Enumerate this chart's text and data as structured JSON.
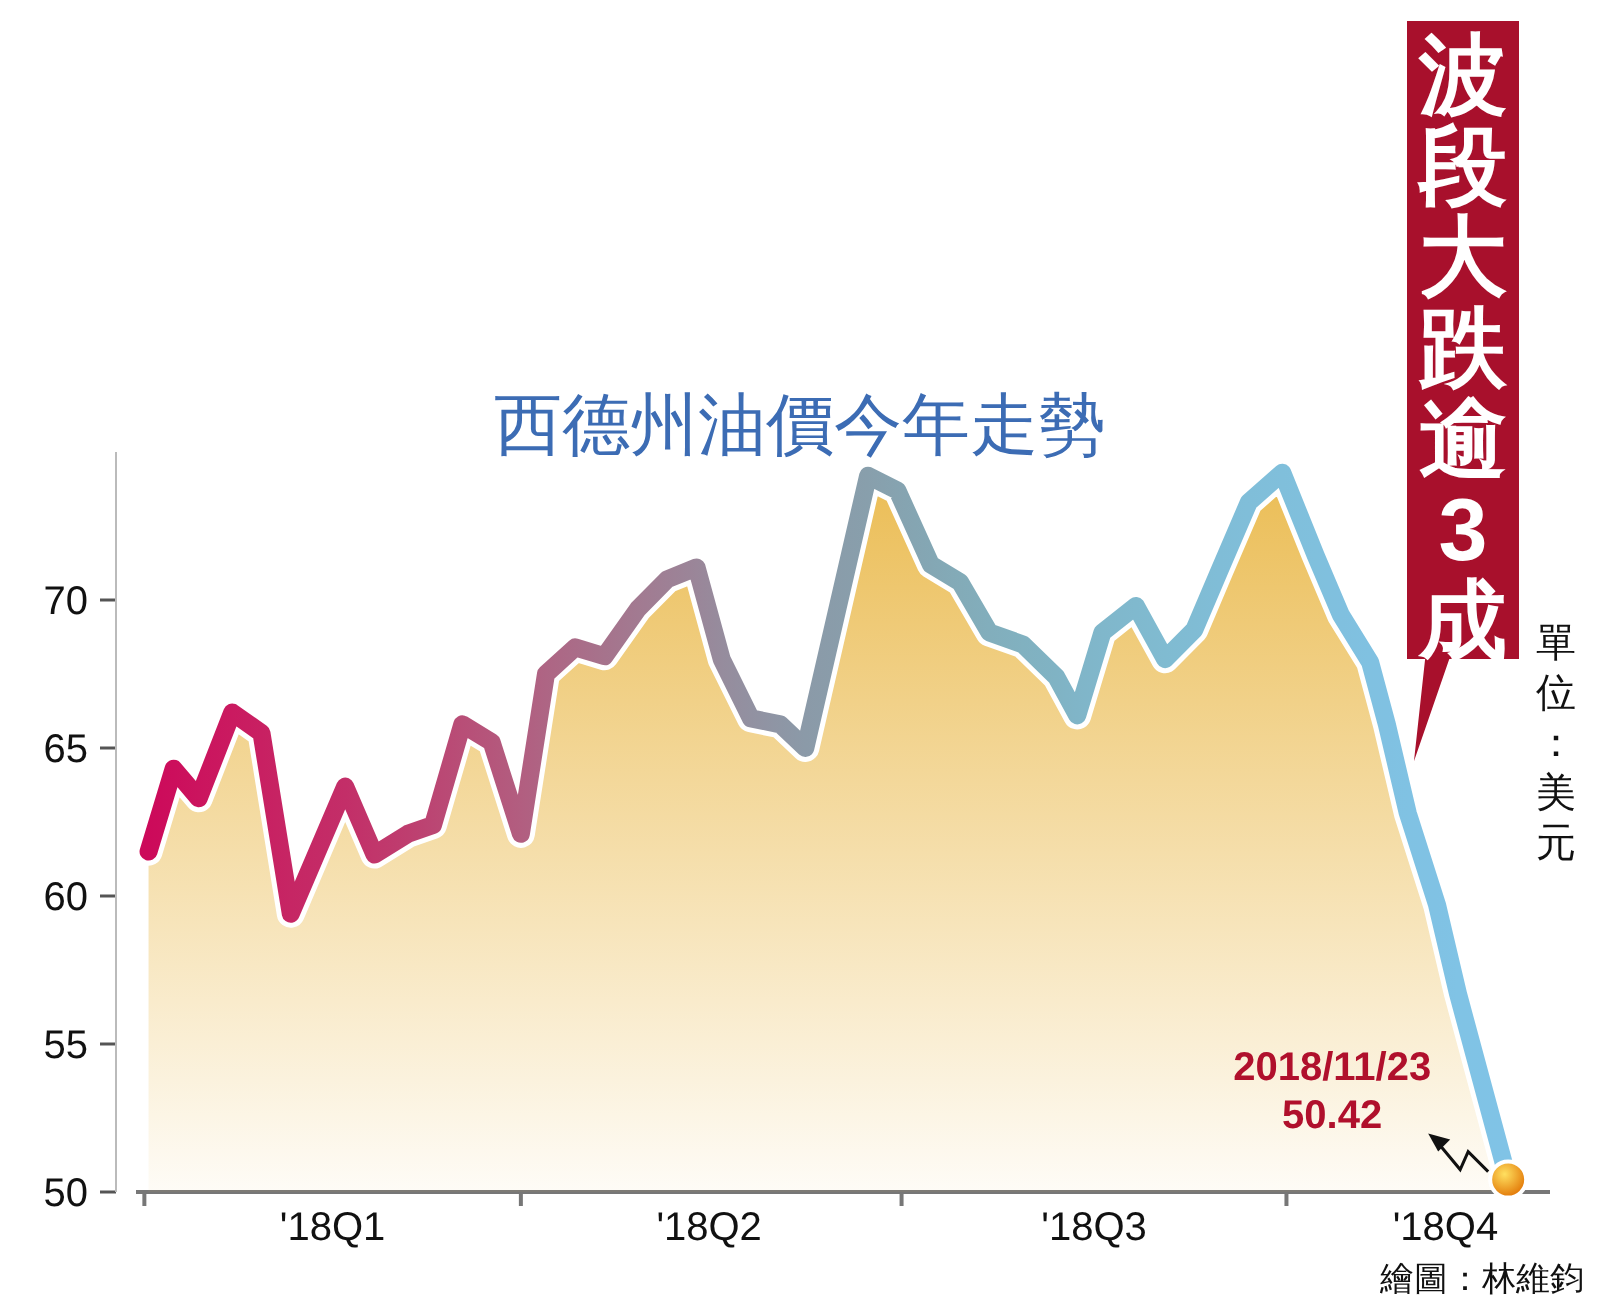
{
  "chart_data": {
    "type": "area",
    "title": "西德州油價今年走勢",
    "x": [
      "2018-01-02",
      "2018-01-08",
      "2018-01-14",
      "2018-01-22",
      "2018-01-29",
      "2018-02-05",
      "2018-02-18",
      "2018-02-25",
      "2018-03-05",
      "2018-03-11",
      "2018-03-18",
      "2018-03-25",
      "2018-04-01",
      "2018-04-07",
      "2018-04-14",
      "2018-04-21",
      "2018-04-29",
      "2018-05-06",
      "2018-05-13",
      "2018-05-19",
      "2018-05-26",
      "2018-06-02",
      "2018-06-08",
      "2018-06-23",
      "2018-06-30",
      "2018-07-08",
      "2018-07-15",
      "2018-07-22",
      "2018-07-30",
      "2018-08-07",
      "2018-08-12",
      "2018-08-18",
      "2018-08-26",
      "2018-09-02",
      "2018-09-09",
      "2018-09-15",
      "2018-09-22",
      "2018-09-30",
      "2018-10-08",
      "2018-10-14",
      "2018-10-21",
      "2018-10-25",
      "2018-10-30",
      "2018-11-06",
      "2018-11-11",
      "2018-11-23"
    ],
    "series": [
      {
        "color": "#ebbd55",
        "colors": [
          "#cc0a5a",
          "#cc0e5c",
          "#cb145e",
          "#ca1a60",
          "#c82062",
          "#c62664",
          "#c32e68",
          "#c1366b",
          "#be3e6f",
          "#bb4673",
          "#b84e77",
          "#b5567b",
          "#b25e80",
          "#ae6584",
          "#aa6c88",
          "#a6738c",
          "#a27a91",
          "#9e8095",
          "#9a8699",
          "#968c9d",
          "#9291a1",
          "#8e96a5",
          "#8b9aa8",
          "#889fac",
          "#86a3b0",
          "#84a7b4",
          "#83abb8",
          "#82aebc",
          "#81b1c0",
          "#80b3c4",
          "#80b5c8",
          "#80b7cb",
          "#80b9ce",
          "#80bbd1",
          "#80bcd4",
          "#80bdd7",
          "#80bed9",
          "#80bfdb",
          "#80c0dd",
          "#80c0df",
          "#80c1e1",
          "#80c1e2",
          "#80c2e3",
          "#80c2e4",
          "#80c3e5",
          "#80c3e6"
        ],
        "values": [
          61.5,
          64.3,
          63.3,
          66.2,
          65.5,
          59.4,
          63.7,
          61.4,
          62.1,
          62.4,
          65.8,
          65.2,
          62.1,
          67.5,
          68.4,
          68.1,
          69.7,
          70.7,
          71.1,
          68.0,
          66.0,
          65.8,
          65.0,
          74.2,
          73.7,
          71.2,
          70.6,
          68.9,
          68.5,
          67.4,
          66.1,
          68.9,
          69.8,
          68.0,
          69.0,
          71.0,
          73.3,
          74.3,
          71.5,
          69.5,
          67.9,
          65.8,
          62.8,
          59.7,
          56.7,
          50.42
        ]
      }
    ],
    "xlim": [
      "2017-12-30",
      "2018-12-03"
    ],
    "xticks": [
      {
        "value": "2018-01-01",
        "label": null
      },
      {
        "value": "2018-02-15",
        "label": "'18Q1"
      },
      {
        "value": "2018-04-01",
        "label": null
      },
      {
        "value": "2018-05-16",
        "label": "'18Q2"
      },
      {
        "value": "2018-07-01",
        "label": null
      },
      {
        "value": "2018-08-16",
        "label": "'18Q3"
      },
      {
        "value": "2018-10-01",
        "label": null
      },
      {
        "value": "2018-11-08",
        "label": "'18Q4"
      }
    ],
    "ylim": [
      50,
      75
    ],
    "yticks": [
      50,
      55,
      60,
      65,
      70
    ],
    "grid": false,
    "annotations": [
      {
        "text": "2018/11/23\n50.42",
        "x": "2018-11-23",
        "y": 50.42
      },
      "波段大跌逾3成",
      "單位：美元",
      "繪圖：林維鈞"
    ]
  }
}
